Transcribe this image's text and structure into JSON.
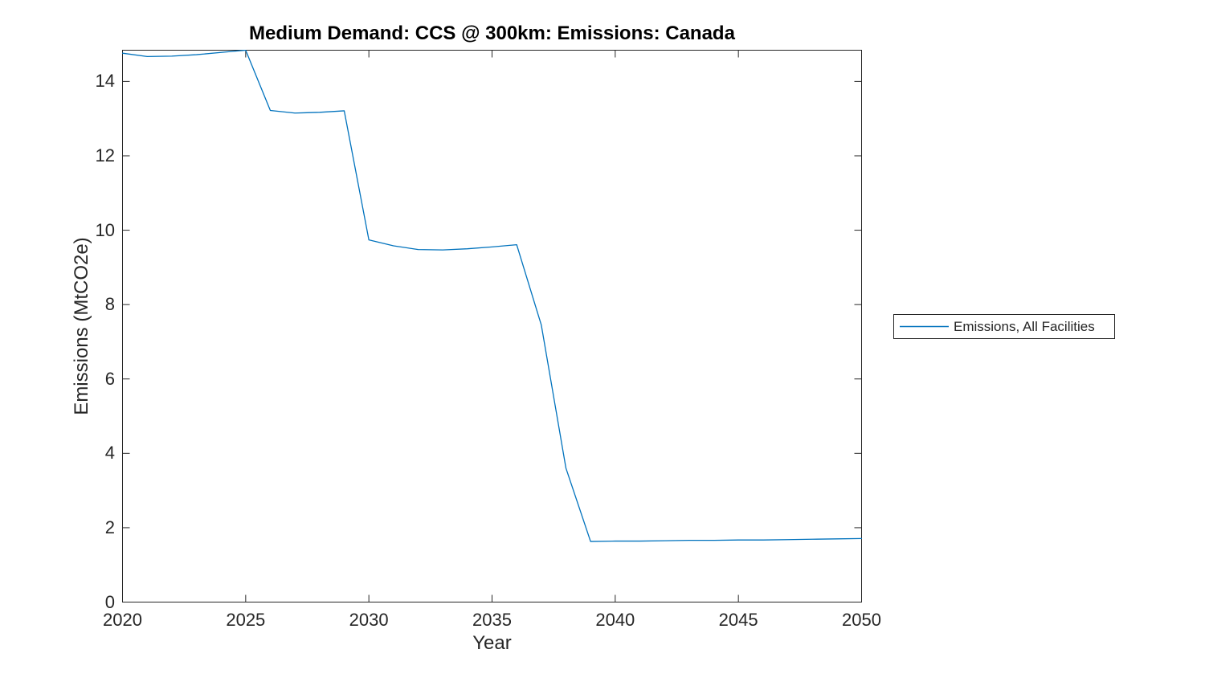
{
  "figure": {
    "background_color": "#ffffff",
    "axes_color": "#262626",
    "tick_label_color": "#262626",
    "title_color": "#000000"
  },
  "chart_data": {
    "type": "line",
    "title": "Medium Demand: CCS @ 300km: Emissions: Canada",
    "xlabel": "Year",
    "ylabel": "Emissions (MtCO2e)",
    "xlim": [
      2020,
      2050
    ],
    "ylim": [
      0,
      14.84
    ],
    "x_ticks": [
      2020,
      2025,
      2030,
      2035,
      2040,
      2045,
      2050
    ],
    "y_ticks": [
      0,
      2,
      4,
      6,
      8,
      10,
      12,
      14
    ],
    "grid": false,
    "legend_position": "right-outside",
    "legend_entries": [
      "Emissions, All Facilities"
    ],
    "series": [
      {
        "name": "Emissions, All Facilities",
        "color": "#0072BD",
        "x": [
          2020,
          2021,
          2022,
          2023,
          2024,
          2025,
          2026,
          2027,
          2028,
          2029,
          2030,
          2031,
          2032,
          2033,
          2034,
          2035,
          2036,
          2037,
          2038,
          2039,
          2040,
          2041,
          2042,
          2043,
          2044,
          2045,
          2046,
          2047,
          2048,
          2049,
          2050
        ],
        "values": [
          14.76,
          14.67,
          14.68,
          14.72,
          14.78,
          14.84,
          13.22,
          13.15,
          13.17,
          13.21,
          9.74,
          9.58,
          9.48,
          9.47,
          9.5,
          9.55,
          9.61,
          7.45,
          3.6,
          1.63,
          1.64,
          1.64,
          1.65,
          1.66,
          1.66,
          1.67,
          1.67,
          1.68,
          1.69,
          1.7,
          1.71
        ]
      }
    ]
  }
}
